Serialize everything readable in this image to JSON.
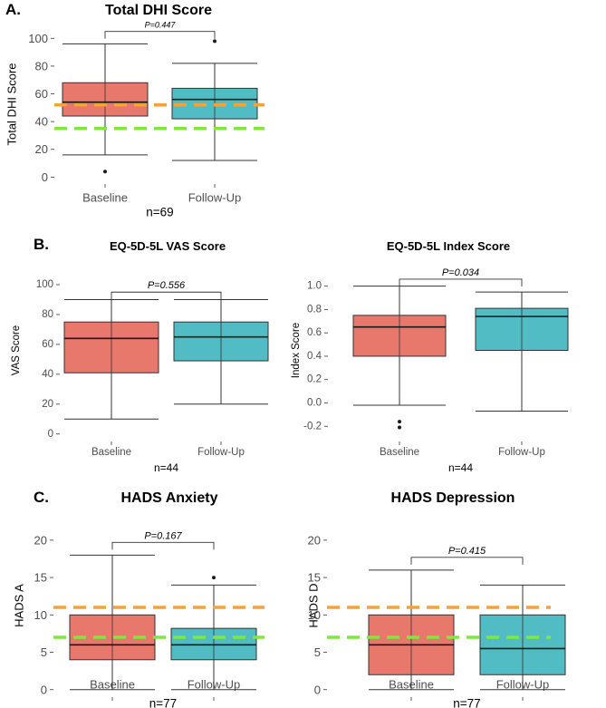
{
  "colors": {
    "baseline": "#E8776C",
    "followup": "#52BCC4",
    "box_stroke": "#333333",
    "ref_orange": "#F4A23A",
    "ref_green": "#7FE83F"
  },
  "chart_data": [
    {
      "id": "dhi",
      "panel_label": "A.",
      "type": "box",
      "title": "Total DHI Score",
      "ylabel": "Total DHI Score",
      "categories": [
        "Baseline",
        "Follow-Up"
      ],
      "ylim": [
        -5,
        110
      ],
      "yticks": [
        0,
        20,
        40,
        60,
        80,
        100
      ],
      "ytick_labels": [
        "0",
        "20",
        "40",
        "60",
        "80",
        "100"
      ],
      "boxes": [
        {
          "group": "Baseline",
          "min": 16,
          "q1": 44,
          "median": 54,
          "q3": 68,
          "max": 96,
          "outliers": [
            4
          ]
        },
        {
          "group": "Follow-Up",
          "min": 12,
          "q1": 42,
          "median": 56,
          "q3": 64,
          "max": 82,
          "outliers": [
            98
          ]
        }
      ],
      "ref_lines": [
        {
          "y": 52,
          "color": "orange"
        },
        {
          "y": 35,
          "color": "green"
        }
      ],
      "p_value": "P=0.447",
      "bracket_y": 105,
      "n_label": "n=69"
    },
    {
      "id": "vas",
      "panel_label": "B.",
      "type": "box",
      "title": "EQ-5D-5L VAS Score",
      "ylabel": "VAS Score",
      "categories": [
        "Baseline",
        "Follow-Up"
      ],
      "ylim": [
        -5,
        117
      ],
      "yticks": [
        0,
        20,
        40,
        60,
        80,
        100
      ],
      "ytick_labels": [
        "0",
        "20",
        "40",
        "60",
        "80",
        "100"
      ],
      "boxes": [
        {
          "group": "Baseline",
          "min": 10,
          "q1": 41,
          "median": 64,
          "q3": 75,
          "max": 90,
          "outliers": []
        },
        {
          "group": "Follow-Up",
          "min": 20,
          "q1": 49,
          "median": 65,
          "q3": 75,
          "max": 90,
          "outliers": []
        }
      ],
      "ref_lines": [],
      "p_value": "P=0.556",
      "bracket_y": 95,
      "n_label": "n=44"
    },
    {
      "id": "index",
      "panel_label": "",
      "type": "box",
      "title": "EQ-5D-5L Index Score",
      "ylabel": "Index Score",
      "categories": [
        "Baseline",
        "Follow-Up"
      ],
      "ylim": [
        -0.33,
        1.23
      ],
      "yticks": [
        -0.2,
        0.0,
        0.2,
        0.4,
        0.6,
        0.8,
        1.0
      ],
      "ytick_labels": [
        "-0.2",
        "0.0",
        "0.2",
        "0.4",
        "0.6",
        "0.8",
        "1.0"
      ],
      "boxes": [
        {
          "group": "Baseline",
          "min": -0.02,
          "q1": 0.4,
          "median": 0.65,
          "q3": 0.75,
          "max": 1.0,
          "outliers": [
            -0.16,
            -0.21
          ]
        },
        {
          "group": "Follow-Up",
          "min": -0.07,
          "q1": 0.45,
          "median": 0.74,
          "q3": 0.81,
          "max": 0.95,
          "outliers": []
        }
      ],
      "ref_lines": [],
      "p_value": "P=0.034",
      "bracket_y": 1.06,
      "n_label": "n=44"
    },
    {
      "id": "hads_a",
      "panel_label": "C.",
      "type": "box",
      "title": "HADS Anxiety",
      "ylabel": "HADS A",
      "categories": [
        "Baseline",
        "Follow-Up"
      ],
      "ylim": [
        -1,
        23.5
      ],
      "yticks": [
        0,
        5,
        10,
        15,
        20
      ],
      "ytick_labels": [
        "0",
        "5",
        "10",
        "15",
        "20"
      ],
      "boxes": [
        {
          "group": "Baseline",
          "min": 0,
          "q1": 4,
          "median": 6,
          "q3": 10,
          "max": 18,
          "outliers": []
        },
        {
          "group": "Follow-Up",
          "min": 0,
          "q1": 4,
          "median": 6,
          "q3": 8.2,
          "max": 14,
          "outliers": [
            15
          ]
        }
      ],
      "ref_lines": [
        {
          "y": 11,
          "color": "orange"
        },
        {
          "y": 7,
          "color": "green"
        }
      ],
      "p_value": "P=0.167",
      "bracket_y": 19.7,
      "n_label": "n=77"
    },
    {
      "id": "hads_d",
      "panel_label": "",
      "type": "box",
      "title": "HADS Depression",
      "ylabel": "HADS D",
      "categories": [
        "Baseline",
        "Follow-Up"
      ],
      "ylim": [
        -1,
        23.5
      ],
      "yticks": [
        0,
        5,
        10,
        15,
        20
      ],
      "ytick_labels": [
        "0",
        "5",
        "10",
        "15",
        "20"
      ],
      "boxes": [
        {
          "group": "Baseline",
          "min": 0,
          "q1": 2,
          "median": 6,
          "q3": 10,
          "max": 16,
          "outliers": []
        },
        {
          "group": "Follow-Up",
          "min": 0,
          "q1": 2,
          "median": 5.5,
          "q3": 10,
          "max": 14,
          "outliers": []
        }
      ],
      "ref_lines": [
        {
          "y": 11,
          "color": "orange"
        },
        {
          "y": 7,
          "color": "green"
        }
      ],
      "p_value": "P=0.415",
      "bracket_y": 17.7,
      "n_label": "n=77"
    }
  ]
}
